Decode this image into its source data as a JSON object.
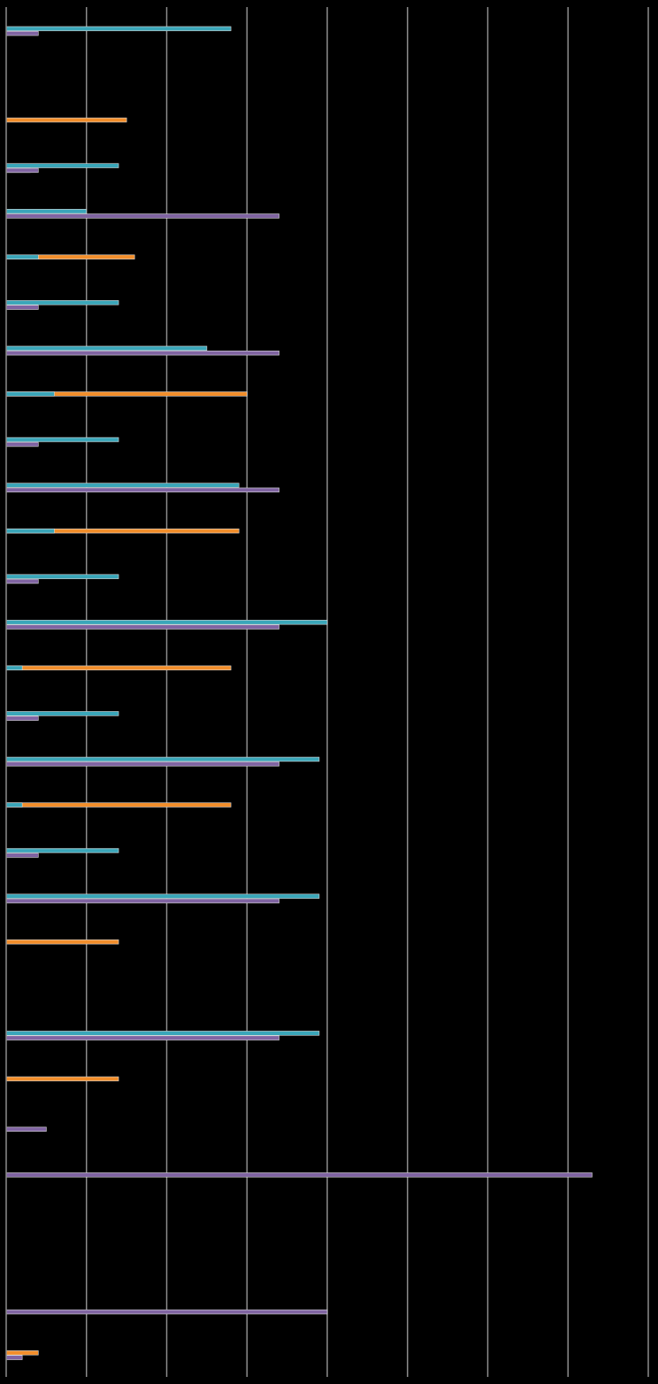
{
  "chart_data": {
    "type": "bar",
    "orientation": "horizontal",
    "title": "",
    "xlabel": "",
    "ylabel": "",
    "xlim": [
      0,
      8
    ],
    "grid": true,
    "legend": "none",
    "background": "#000000",
    "gridline_color": "#8c8c8c",
    "series_order_within_group": [
      "orange",
      "blue",
      "teal",
      "purple"
    ],
    "series": [
      {
        "color": "#f28e2b"
      },
      {
        "color": "#4e79c0"
      },
      {
        "color": "#3aa6b9"
      },
      {
        "color": "#8064a2"
      }
    ],
    "groups": [
      [
        null,
        null,
        2.8,
        0.4
      ],
      [
        null,
        null,
        null,
        null
      ],
      [
        1.5,
        null,
        null,
        null
      ],
      [
        null,
        0.3,
        1.4,
        0.4
      ],
      [
        null,
        null,
        1.0,
        3.4
      ],
      [
        1.6,
        null,
        0.4,
        null
      ],
      [
        null,
        null,
        1.4,
        0.4
      ],
      [
        null,
        null,
        2.5,
        3.4
      ],
      [
        3.0,
        null,
        0.6,
        null
      ],
      [
        null,
        null,
        1.4,
        0.4
      ],
      [
        null,
        null,
        2.9,
        3.4
      ],
      [
        2.9,
        null,
        0.6,
        null
      ],
      [
        null,
        null,
        1.4,
        0.4
      ],
      [
        null,
        null,
        4.0,
        3.4
      ],
      [
        2.8,
        null,
        0.2,
        null
      ],
      [
        null,
        null,
        1.4,
        0.4
      ],
      [
        null,
        null,
        3.9,
        3.4
      ],
      [
        2.8,
        null,
        0.2,
        null
      ],
      [
        null,
        null,
        1.4,
        0.4
      ],
      [
        null,
        null,
        3.9,
        3.4
      ],
      [
        1.4,
        null,
        null,
        null
      ],
      [
        null,
        null,
        null,
        null
      ],
      [
        null,
        null,
        3.9,
        3.4
      ],
      [
        1.4,
        null,
        null,
        null
      ],
      [
        null,
        null,
        null,
        0.5
      ],
      [
        null,
        null,
        null,
        7.3
      ],
      [
        null,
        null,
        null,
        null
      ],
      [
        null,
        null,
        null,
        null
      ],
      [
        null,
        null,
        null,
        4.0
      ],
      [
        0.4,
        null,
        null,
        0.2
      ]
    ]
  }
}
